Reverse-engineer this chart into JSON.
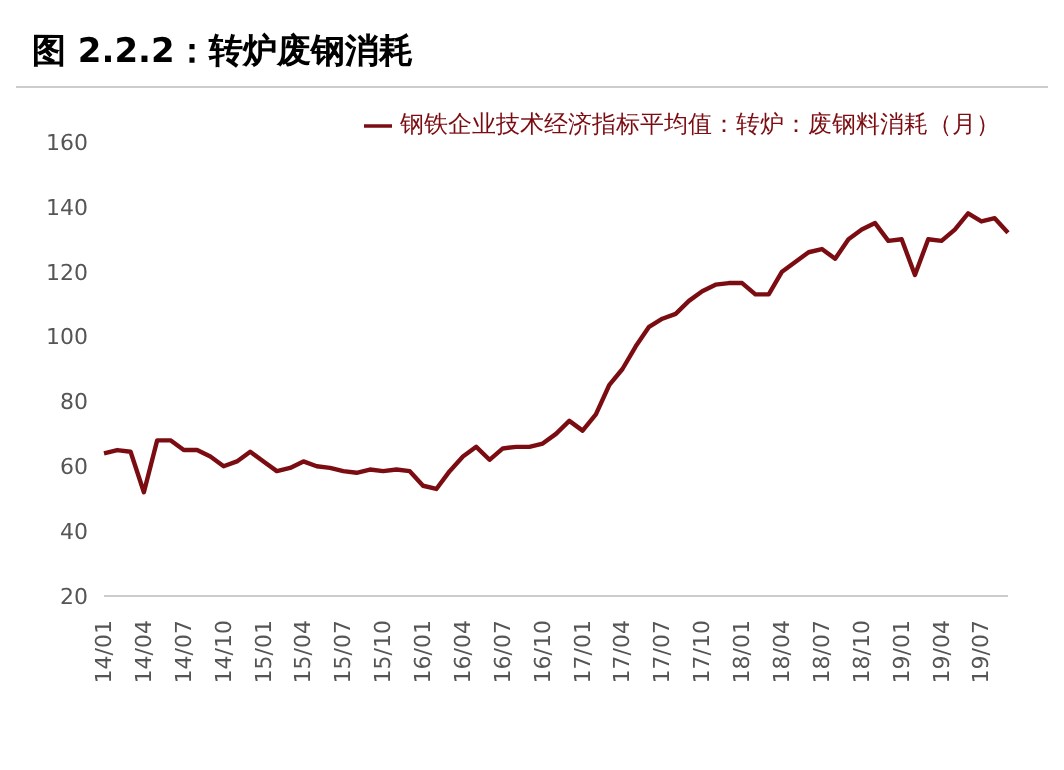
{
  "chart_data": {
    "type": "line",
    "title": "图 2.2.2：转炉废钢消耗",
    "categories": [
      "14/01",
      null,
      null,
      "14/04",
      null,
      null,
      "14/07",
      null,
      null,
      "14/10",
      null,
      null,
      "15/01",
      null,
      null,
      "15/04",
      null,
      null,
      "15/07",
      null,
      null,
      "15/10",
      null,
      null,
      "16/01",
      null,
      null,
      "16/04",
      null,
      null,
      "16/07",
      null,
      null,
      "16/10",
      null,
      null,
      "17/01",
      null,
      null,
      "17/04",
      null,
      null,
      "17/07",
      null,
      null,
      "17/10",
      null,
      null,
      "18/01",
      null,
      null,
      "18/04",
      null,
      null,
      "18/07",
      null,
      null,
      "18/10",
      null,
      null,
      "19/01",
      null,
      null,
      "19/04",
      null,
      null,
      "19/07",
      null,
      null
    ],
    "series": [
      {
        "name": "钢铁企业技术经济指标平均值：转炉：废钢料消耗（月）",
        "color": "#7b0d12",
        "values": [
          64,
          65,
          64.5,
          52,
          68,
          68,
          65,
          65,
          63,
          60,
          61.5,
          64.5,
          61.5,
          58.5,
          59.5,
          61.5,
          60,
          59.5,
          58.5,
          58,
          59,
          58.5,
          59,
          58.5,
          54,
          53,
          58.5,
          63,
          66,
          62,
          65.5,
          66,
          66,
          67,
          70,
          74,
          71,
          76,
          85,
          90,
          97,
          103,
          105.5,
          107,
          111,
          114,
          116,
          116.5,
          116.5,
          113,
          113,
          120,
          123,
          126,
          127,
          124,
          130,
          133,
          135,
          129.5,
          130,
          119,
          130,
          129.5,
          133,
          138,
          135.5,
          136.5,
          132
        ]
      }
    ],
    "ylim": [
      20,
      160
    ],
    "yticks": [
      20,
      40,
      60,
      80,
      100,
      120,
      140,
      160
    ],
    "legend": "top",
    "grid": false,
    "marker": "none",
    "line_style": "solid"
  }
}
